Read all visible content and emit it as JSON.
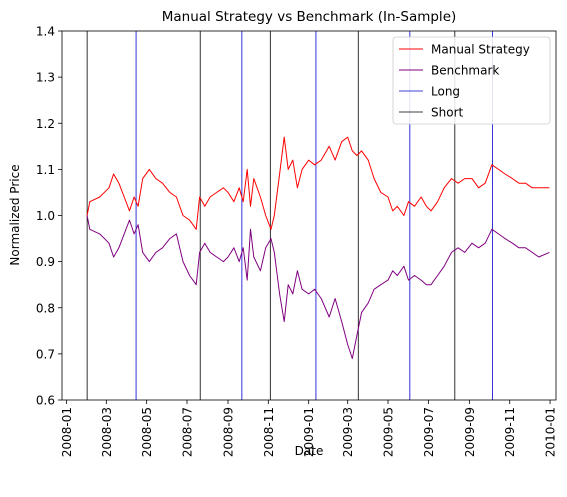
{
  "chart_data": {
    "type": "line",
    "title": "Manual Strategy vs Benchmark (In-Sample)",
    "xlabel": "Date",
    "ylabel": "Normalized Price",
    "xlim": [
      "2007-12-25",
      "2010-01-10"
    ],
    "ylim": [
      0.6,
      1.4
    ],
    "x_ticks": [
      "2008-01",
      "2008-03",
      "2008-05",
      "2008-07",
      "2008-09",
      "2008-11",
      "2009-01",
      "2009-03",
      "2009-05",
      "2009-07",
      "2009-09",
      "2009-11",
      "2010-01"
    ],
    "y_ticks": [
      0.6,
      0.7,
      0.8,
      0.9,
      1.0,
      1.1,
      1.2,
      1.3,
      1.4
    ],
    "grid": false,
    "legend_position": "top-right",
    "series": [
      {
        "name": "Manual Strategy",
        "color": "#ff0000",
        "points": [
          [
            "2008-02-01",
            1.0
          ],
          [
            "2008-02-05",
            1.03
          ],
          [
            "2008-02-20",
            1.04
          ],
          [
            "2008-03-05",
            1.06
          ],
          [
            "2008-03-12",
            1.09
          ],
          [
            "2008-03-20",
            1.07
          ],
          [
            "2008-03-28",
            1.04
          ],
          [
            "2008-04-05",
            1.01
          ],
          [
            "2008-04-12",
            1.04
          ],
          [
            "2008-04-18",
            1.02
          ],
          [
            "2008-04-25",
            1.08
          ],
          [
            "2008-05-05",
            1.1
          ],
          [
            "2008-05-15",
            1.08
          ],
          [
            "2008-05-25",
            1.07
          ],
          [
            "2008-06-05",
            1.05
          ],
          [
            "2008-06-15",
            1.04
          ],
          [
            "2008-06-25",
            1.0
          ],
          [
            "2008-07-05",
            0.99
          ],
          [
            "2008-07-15",
            0.97
          ],
          [
            "2008-07-20",
            1.04
          ],
          [
            "2008-07-28",
            1.02
          ],
          [
            "2008-08-05",
            1.04
          ],
          [
            "2008-08-15",
            1.05
          ],
          [
            "2008-08-25",
            1.06
          ],
          [
            "2008-09-01",
            1.05
          ],
          [
            "2008-09-10",
            1.03
          ],
          [
            "2008-09-18",
            1.06
          ],
          [
            "2008-09-24",
            1.03
          ],
          [
            "2008-09-30",
            1.1
          ],
          [
            "2008-10-05",
            1.02
          ],
          [
            "2008-10-10",
            1.08
          ],
          [
            "2008-10-20",
            1.04
          ],
          [
            "2008-10-28",
            1.0
          ],
          [
            "2008-11-05",
            0.97
          ],
          [
            "2008-11-10",
            1.0
          ],
          [
            "2008-11-18",
            1.09
          ],
          [
            "2008-11-25",
            1.17
          ],
          [
            "2008-12-01",
            1.1
          ],
          [
            "2008-12-08",
            1.12
          ],
          [
            "2008-12-15",
            1.06
          ],
          [
            "2008-12-22",
            1.1
          ],
          [
            "2009-01-01",
            1.12
          ],
          [
            "2009-01-10",
            1.11
          ],
          [
            "2009-01-20",
            1.12
          ],
          [
            "2009-02-01",
            1.15
          ],
          [
            "2009-02-10",
            1.12
          ],
          [
            "2009-02-20",
            1.16
          ],
          [
            "2009-03-01",
            1.17
          ],
          [
            "2009-03-08",
            1.14
          ],
          [
            "2009-03-15",
            1.13
          ],
          [
            "2009-03-22",
            1.14
          ],
          [
            "2009-04-01",
            1.12
          ],
          [
            "2009-04-10",
            1.08
          ],
          [
            "2009-04-20",
            1.05
          ],
          [
            "2009-05-01",
            1.04
          ],
          [
            "2009-05-08",
            1.01
          ],
          [
            "2009-05-15",
            1.02
          ],
          [
            "2009-05-25",
            1.0
          ],
          [
            "2009-06-01",
            1.03
          ],
          [
            "2009-06-10",
            1.02
          ],
          [
            "2009-06-20",
            1.04
          ],
          [
            "2009-06-28",
            1.02
          ],
          [
            "2009-07-05",
            1.01
          ],
          [
            "2009-07-15",
            1.03
          ],
          [
            "2009-07-25",
            1.06
          ],
          [
            "2009-08-05",
            1.08
          ],
          [
            "2009-08-15",
            1.07
          ],
          [
            "2009-08-25",
            1.08
          ],
          [
            "2009-09-05",
            1.08
          ],
          [
            "2009-09-15",
            1.06
          ],
          [
            "2009-09-25",
            1.07
          ],
          [
            "2009-10-05",
            1.11
          ],
          [
            "2009-10-15",
            1.1
          ],
          [
            "2009-10-25",
            1.09
          ],
          [
            "2009-11-05",
            1.08
          ],
          [
            "2009-11-15",
            1.07
          ],
          [
            "2009-11-25",
            1.07
          ],
          [
            "2009-12-05",
            1.06
          ],
          [
            "2009-12-15",
            1.06
          ],
          [
            "2009-12-31",
            1.06
          ]
        ]
      },
      {
        "name": "Benchmark",
        "color": "#800080",
        "points": [
          [
            "2008-02-01",
            1.0
          ],
          [
            "2008-02-05",
            0.97
          ],
          [
            "2008-02-20",
            0.96
          ],
          [
            "2008-03-05",
            0.94
          ],
          [
            "2008-03-12",
            0.91
          ],
          [
            "2008-03-20",
            0.93
          ],
          [
            "2008-03-28",
            0.96
          ],
          [
            "2008-04-05",
            0.99
          ],
          [
            "2008-04-12",
            0.96
          ],
          [
            "2008-04-18",
            0.98
          ],
          [
            "2008-04-25",
            0.92
          ],
          [
            "2008-05-05",
            0.9
          ],
          [
            "2008-05-15",
            0.92
          ],
          [
            "2008-05-25",
            0.93
          ],
          [
            "2008-06-05",
            0.95
          ],
          [
            "2008-06-15",
            0.96
          ],
          [
            "2008-06-25",
            0.9
          ],
          [
            "2008-07-05",
            0.87
          ],
          [
            "2008-07-15",
            0.85
          ],
          [
            "2008-07-20",
            0.92
          ],
          [
            "2008-07-28",
            0.94
          ],
          [
            "2008-08-05",
            0.92
          ],
          [
            "2008-08-15",
            0.91
          ],
          [
            "2008-08-25",
            0.9
          ],
          [
            "2008-09-01",
            0.91
          ],
          [
            "2008-09-10",
            0.93
          ],
          [
            "2008-09-18",
            0.9
          ],
          [
            "2008-09-24",
            0.93
          ],
          [
            "2008-09-30",
            0.86
          ],
          [
            "2008-10-05",
            0.97
          ],
          [
            "2008-10-10",
            0.91
          ],
          [
            "2008-10-20",
            0.88
          ],
          [
            "2008-10-28",
            0.93
          ],
          [
            "2008-11-05",
            0.95
          ],
          [
            "2008-11-10",
            0.92
          ],
          [
            "2008-11-18",
            0.83
          ],
          [
            "2008-11-25",
            0.77
          ],
          [
            "2008-12-01",
            0.85
          ],
          [
            "2008-12-08",
            0.83
          ],
          [
            "2008-12-15",
            0.88
          ],
          [
            "2008-12-22",
            0.84
          ],
          [
            "2009-01-01",
            0.83
          ],
          [
            "2009-01-10",
            0.84
          ],
          [
            "2009-01-20",
            0.82
          ],
          [
            "2009-02-01",
            0.78
          ],
          [
            "2009-02-10",
            0.82
          ],
          [
            "2009-02-20",
            0.77
          ],
          [
            "2009-03-01",
            0.72
          ],
          [
            "2009-03-08",
            0.69
          ],
          [
            "2009-03-15",
            0.74
          ],
          [
            "2009-03-22",
            0.79
          ],
          [
            "2009-04-01",
            0.81
          ],
          [
            "2009-04-10",
            0.84
          ],
          [
            "2009-04-20",
            0.85
          ],
          [
            "2009-05-01",
            0.86
          ],
          [
            "2009-05-08",
            0.88
          ],
          [
            "2009-05-15",
            0.87
          ],
          [
            "2009-05-25",
            0.89
          ],
          [
            "2009-06-01",
            0.86
          ],
          [
            "2009-06-10",
            0.87
          ],
          [
            "2009-06-20",
            0.86
          ],
          [
            "2009-06-28",
            0.85
          ],
          [
            "2009-07-05",
            0.85
          ],
          [
            "2009-07-15",
            0.87
          ],
          [
            "2009-07-25",
            0.89
          ],
          [
            "2009-08-05",
            0.92
          ],
          [
            "2009-08-15",
            0.93
          ],
          [
            "2009-08-25",
            0.92
          ],
          [
            "2009-09-05",
            0.94
          ],
          [
            "2009-09-15",
            0.93
          ],
          [
            "2009-09-25",
            0.94
          ],
          [
            "2009-10-05",
            0.97
          ],
          [
            "2009-10-15",
            0.96
          ],
          [
            "2009-10-25",
            0.95
          ],
          [
            "2009-11-05",
            0.94
          ],
          [
            "2009-11-15",
            0.93
          ],
          [
            "2009-11-25",
            0.93
          ],
          [
            "2009-12-05",
            0.92
          ],
          [
            "2009-12-15",
            0.91
          ],
          [
            "2009-12-31",
            0.92
          ]
        ]
      }
    ],
    "markers": {
      "long": {
        "name": "Long",
        "color": "#0000cd",
        "dates": [
          "2008-04-15",
          "2008-09-22",
          "2009-01-12",
          "2009-06-03",
          "2009-10-06"
        ]
      },
      "short": {
        "name": "Short",
        "color": "#000000",
        "dates": [
          "2008-02-01",
          "2008-07-21",
          "2008-11-04",
          "2009-03-17",
          "2009-08-10"
        ]
      }
    }
  }
}
